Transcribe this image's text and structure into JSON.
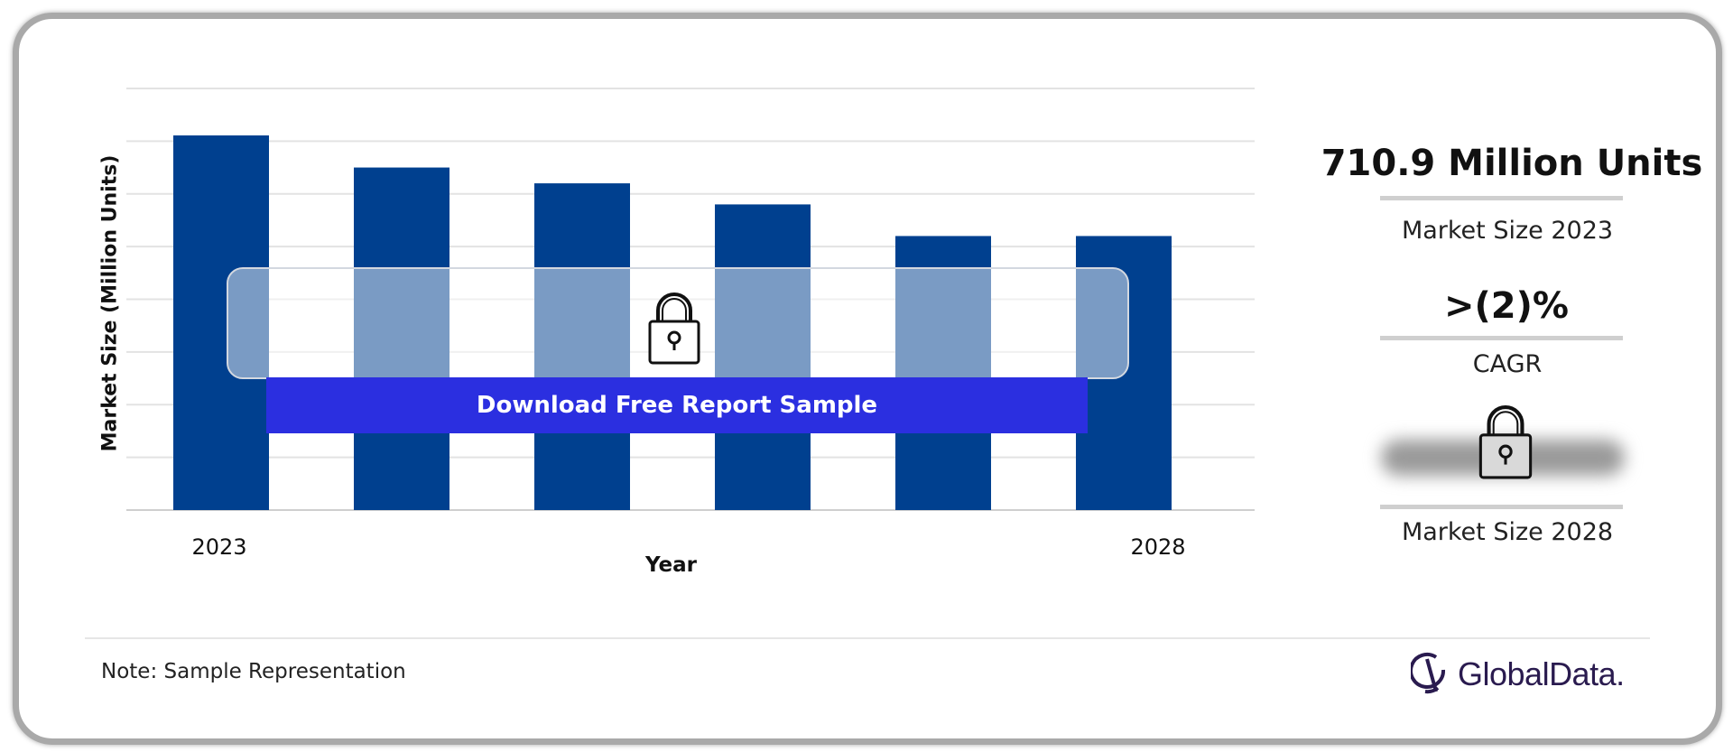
{
  "chart_data": {
    "type": "bar",
    "categories": [
      "2023",
      "",
      "",
      "",
      "",
      "2028"
    ],
    "values": [
      710.9,
      650,
      620,
      580,
      520,
      520
    ],
    "ylim": [
      0,
      800
    ],
    "ylabel": "Market Size (Million Units)",
    "xlabel": "Year",
    "grid": true,
    "bar_color": "#00408f",
    "tick_labels": [
      "2023",
      "2028"
    ]
  },
  "panel": {
    "market_size_2023_value": "710.9 Million Units",
    "market_size_2023_label": "Market Size 2023",
    "cagr_value": ">(2)%",
    "cagr_label": "CAGR",
    "market_size_2028_label": "Market Size 2028"
  },
  "overlay": {
    "download_label": "Download Free Report Sample",
    "fade_color": "#7fa3c9",
    "button_color": "#2b2fe0"
  },
  "footer": {
    "note": "Note: Sample Representation",
    "logo_text": "GlobalData."
  },
  "icons": {
    "lock": "lock-icon",
    "logo": "globaldata-logo-icon"
  }
}
